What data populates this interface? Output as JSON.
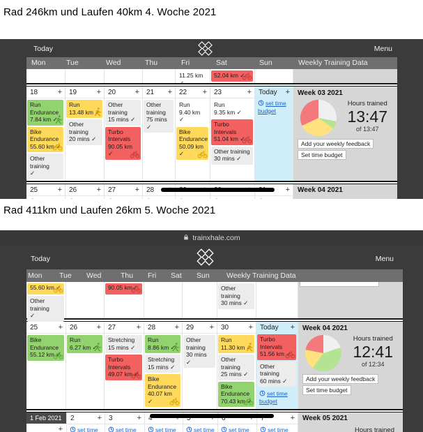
{
  "page": {
    "title1": "Rad 246km und Laufen 40km 4. Woche 2021",
    "title2": "Rad 411km und Laufen 26km 5. Woche 2021"
  },
  "browser": {
    "url": "trainxhale.com"
  },
  "ui": {
    "today": "Today",
    "menu": "Menu",
    "plus": "+",
    "days": [
      "Mon",
      "Tue",
      "Wed",
      "Thu",
      "Fri",
      "Sat",
      "Sun"
    ],
    "weekly_header": "Weekly Training Data",
    "hours_trained": "Hours trained",
    "set_time_budget": "set time budget",
    "feedback_button": "Add your weekly feedback",
    "budget_button": "Set time budget",
    "today_label": "Today"
  },
  "colors": {
    "event_green": "#93d36f",
    "event_yellow": "#ffd95c",
    "event_red": "#f2615f",
    "event_gray": "#ececec",
    "today_blue": "#cfeef9",
    "link_blue": "#1963c9",
    "panel_gray": "#d6d6d6",
    "chrome_dark": "#3b3b3b"
  },
  "shot1": {
    "overflow_days": [
      [],
      [],
      [],
      [],
      [
        {
          "v": "11.25 km ✓",
          "c": "plain"
        }
      ],
      [
        {
          "v": "52.04 km ✓",
          "c": "red",
          "i": "bike"
        }
      ],
      []
    ],
    "week": {
      "dates": [
        "18",
        "19",
        "20",
        "21",
        "22",
        "23"
      ],
      "days": [
        [
          {
            "t": "Run Endurance",
            "v": "7.84 km ✓",
            "c": "green",
            "i": "run"
          },
          {
            "t": "Bike Endurance",
            "v": "55.60 km ✓",
            "c": "yellow",
            "i": "bike"
          },
          {
            "t": "Other training",
            "v": "✓",
            "c": "gray"
          }
        ],
        [
          {
            "t": "Run",
            "v": "13.48 km ✓",
            "c": "yellow",
            "i": "run"
          },
          {
            "t": "Other training",
            "v": "20 mins ✓",
            "c": "gray"
          }
        ],
        [
          {
            "t": "Other training",
            "v": "15 mins ✓",
            "c": "gray"
          },
          {
            "t": "Turbo Intervals",
            "v": "90.05 km ✓",
            "c": "red",
            "i": "bike"
          }
        ],
        [
          {
            "t": "Other training",
            "v": "75 mins ✓",
            "c": "gray"
          }
        ],
        [
          {
            "t": "Run",
            "v": "9.40 km ✓",
            "c": "plain"
          },
          {
            "t": "Bike Endurance",
            "v": "50.09 km ✓",
            "c": "yellow",
            "i": "bike"
          }
        ],
        [
          {
            "t": "Run",
            "v": "9.35 km ✓",
            "c": "plain"
          },
          {
            "t": "Turbo Intervals",
            "v": "51.04 km ✓",
            "c": "red",
            "i": "bike"
          },
          {
            "t": "Other training",
            "v": "30 mins ✓",
            "c": "gray"
          }
        ]
      ],
      "panel": {
        "title": "Week 03 2021",
        "hours": "13:47",
        "of": "of 13:47",
        "pie": [
          {
            "color": "#f0f0f0",
            "pct": 28
          },
          {
            "color": "#b5e394",
            "pct": 7
          },
          {
            "color": "#ffe180",
            "pct": 33
          },
          {
            "color": "#f3797c",
            "pct": 32
          }
        ]
      }
    },
    "next": {
      "dates": [
        "25",
        "26",
        "27",
        "28",
        "29",
        "30",
        "31"
      ],
      "panel_title": "Week 04 2021"
    }
  },
  "shot2": {
    "leftover_days": [
      [
        {
          "v": "55.60 km ✓",
          "c": "yellow",
          "i": "bike",
          "p": true
        },
        {
          "t": "Other training",
          "v": "✓",
          "c": "gray"
        }
      ],
      [],
      [
        {
          "v": "90.05 km✓",
          "c": "red",
          "i": "bike",
          "p": true
        }
      ],
      [],
      [],
      [
        {
          "t": "Other training",
          "v": "30 mins ✓",
          "c": "gray"
        }
      ],
      []
    ],
    "week": {
      "dates": [
        "25",
        "26",
        "27",
        "28",
        "29",
        "30"
      ],
      "days": [
        [
          {
            "t": "Bike Endurance",
            "v": "55.12 km ✓",
            "c": "green",
            "i": "bike"
          }
        ],
        [
          {
            "t": "Run",
            "v": "6.27 km ✓",
            "c": "green",
            "i": "run"
          }
        ],
        [
          {
            "t": "Stretching",
            "v": "15 mins ✓",
            "c": "gray"
          },
          {
            "t": "Turbo Intervals",
            "v": "49.07 km ✓",
            "c": "red",
            "i": "bike"
          }
        ],
        [
          {
            "t": "Run",
            "v": "8.86 km ✓",
            "c": "green",
            "i": "run"
          },
          {
            "t": "Stretching",
            "v": "15 mins ✓",
            "c": "gray"
          },
          {
            "t": "Bike Endurance",
            "v": "40.07 km ✓",
            "c": "yellow",
            "i": "bike"
          }
        ],
        [
          {
            "t": "Other training",
            "v": "30 mins ✓",
            "c": "gray"
          }
        ],
        [
          {
            "t": "Run",
            "v": "11.30 km ✓",
            "c": "yellow",
            "i": "run"
          },
          {
            "t": "Other training",
            "v": "25 mins ✓",
            "c": "gray"
          },
          {
            "t": "Bike Endurance",
            "v": "70.43 km ✓",
            "c": "green",
            "i": "bike"
          }
        ]
      ],
      "today_events": [
        {
          "t": "Turbo Intervals",
          "v": "51.56 km ✓",
          "c": "red",
          "i": "bike"
        },
        {
          "t": "Other training",
          "v": "60 mins ✓",
          "c": "gray"
        }
      ],
      "panel": {
        "title": "Week 04 2021",
        "hours": "12:41",
        "of": "of 12:34",
        "pie": [
          {
            "color": "#f0f0f0",
            "pct": 20
          },
          {
            "color": "#b5e394",
            "pct": 40
          },
          {
            "color": "#ffe180",
            "pct": 18
          },
          {
            "color": "#f3797c",
            "pct": 22
          }
        ]
      }
    },
    "next": {
      "first": "1 Feb 2021",
      "dates": [
        "2",
        "3",
        "4",
        "5",
        "6",
        "7"
      ],
      "panel_title": "Week 05 2021"
    }
  }
}
